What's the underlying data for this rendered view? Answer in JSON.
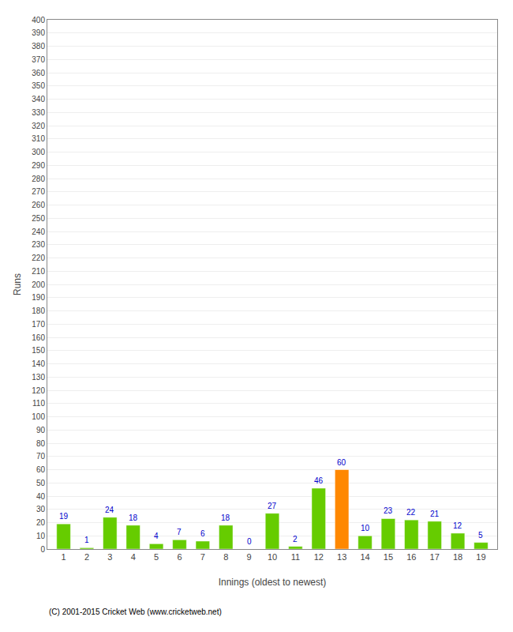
{
  "chart_data": {
    "type": "bar",
    "x": [
      1,
      2,
      3,
      4,
      5,
      6,
      7,
      8,
      9,
      10,
      11,
      12,
      13,
      14,
      15,
      16,
      17,
      18,
      19
    ],
    "values": [
      19,
      1,
      24,
      18,
      4,
      7,
      6,
      18,
      0,
      27,
      2,
      46,
      60,
      10,
      23,
      22,
      21,
      12,
      5
    ],
    "colors": [
      "#66cc00",
      "#66cc00",
      "#66cc00",
      "#66cc00",
      "#66cc00",
      "#66cc00",
      "#66cc00",
      "#66cc00",
      "#66cc00",
      "#66cc00",
      "#66cc00",
      "#66cc00",
      "#ff8800",
      "#66cc00",
      "#66cc00",
      "#66cc00",
      "#66cc00",
      "#66cc00",
      "#66cc00"
    ],
    "xlabel": "Innings (oldest to newest)",
    "ylabel": "Runs",
    "xlim": [
      0.3,
      19.7
    ],
    "xticks": [
      1,
      2,
      3,
      4,
      5,
      6,
      7,
      8,
      9,
      10,
      11,
      12,
      13,
      14,
      15,
      16,
      17,
      18,
      19
    ],
    "ylim": [
      0,
      400
    ],
    "yticks": [
      0,
      10,
      20,
      30,
      40,
      50,
      60,
      70,
      80,
      90,
      100,
      110,
      120,
      130,
      140,
      150,
      160,
      170,
      180,
      190,
      200,
      210,
      220,
      230,
      240,
      250,
      260,
      270,
      280,
      290,
      300,
      310,
      320,
      330,
      340,
      350,
      360,
      370,
      380,
      390,
      400
    ],
    "grid": "y",
    "data_labels": true,
    "annotations": [
      "(C) 2001-2015 Cricket Web (www.cricketweb.net)"
    ]
  }
}
